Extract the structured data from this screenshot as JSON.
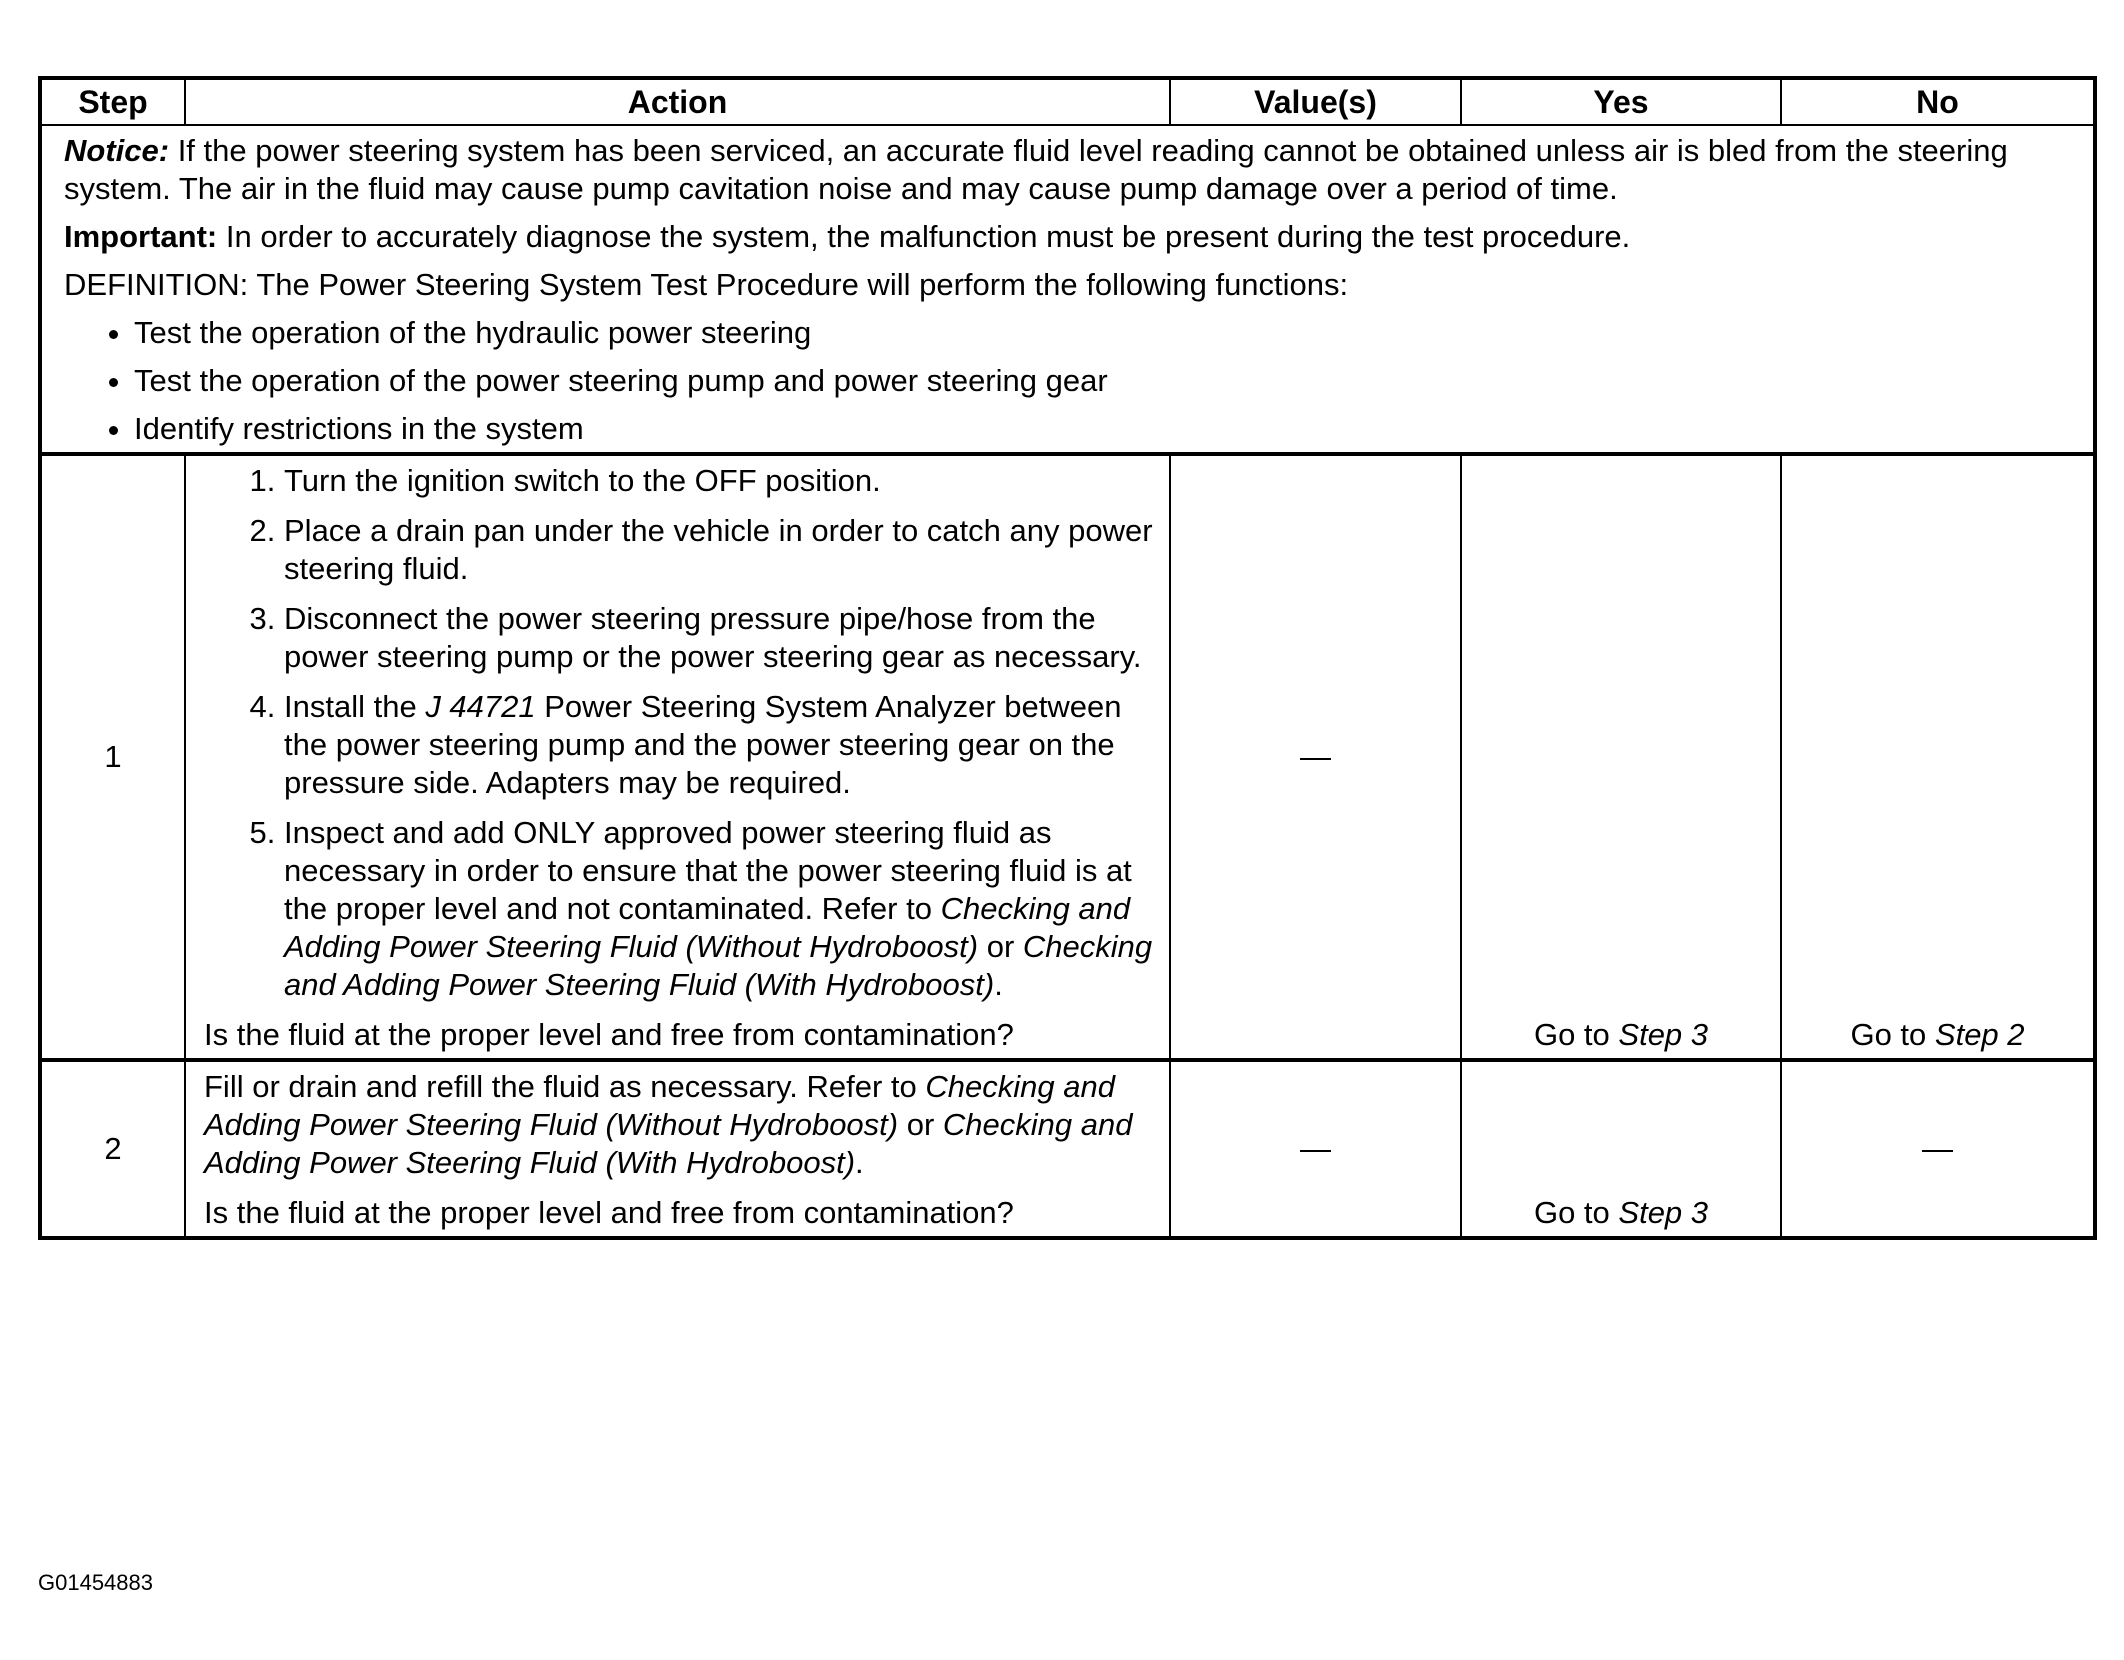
{
  "table": {
    "headers": {
      "step": "Step",
      "action": "Action",
      "values": "Value(s)",
      "yes": "Yes",
      "no": "No"
    },
    "intro": {
      "notice_label": "Notice:",
      "notice_text": " If the power steering system has been serviced, an accurate fluid level reading cannot be obtained unless air is bled from the steering system. The air in the fluid may cause pump cavitation noise and may cause pump damage over a period of time.",
      "important_label": "Important:",
      "important_text": " In order to accurately diagnose the system, the malfunction must be present during the test procedure.",
      "definition": "DEFINITION: The Power Steering System Test Procedure will perform the following functions:",
      "bullets": [
        "Test the operation of the hydraulic power steering",
        "Test the operation of the power steering pump and power steering gear",
        "Identify restrictions in the system"
      ]
    },
    "rows": [
      {
        "step": "1",
        "items": {
          "i1": "Turn the ignition switch to the OFF position.",
          "i2": "Place a drain pan under the vehicle in order to catch any power steering fluid.",
          "i3": "Disconnect the power steering pressure pipe/hose from the power steering pump or the power steering gear as necessary.",
          "i4a": "Install the ",
          "i4tool": "J 44721",
          "i4b": " Power Steering System Analyzer between the power steering pump and the power steering gear on the pressure side. Adapters may be required.",
          "i5a": "Inspect and add ONLY approved power steering fluid as necessary in order to ensure that the power steering fluid is at the proper level and not contaminated. Refer to ",
          "i5ref1": "Checking and Adding Power Steering Fluid (Without Hydroboost)",
          "i5or": " or ",
          "i5ref2": "Checking and Adding Power Steering Fluid (With Hydroboost)",
          "i5end": "."
        },
        "question": "Is the fluid at the proper level and free from contamination?",
        "value": "—",
        "yes_prefix": "Go to ",
        "yes_link": "Step 3",
        "no_prefix": "Go to ",
        "no_link": "Step 2"
      },
      {
        "step": "2",
        "text_a": "Fill or drain and refill the fluid as necessary. Refer to ",
        "ref1": "Checking and Adding Power Steering Fluid (Without Hydroboost)",
        "or": " or ",
        "ref2": "Checking and Adding Power Steering Fluid (With Hydroboost)",
        "end": ".",
        "question": "Is the fluid at the proper level and free from contamination?",
        "value": "—",
        "yes_prefix": "Go to ",
        "yes_link": "Step 3",
        "no": "—"
      }
    ]
  },
  "figure_id": "G01454883"
}
